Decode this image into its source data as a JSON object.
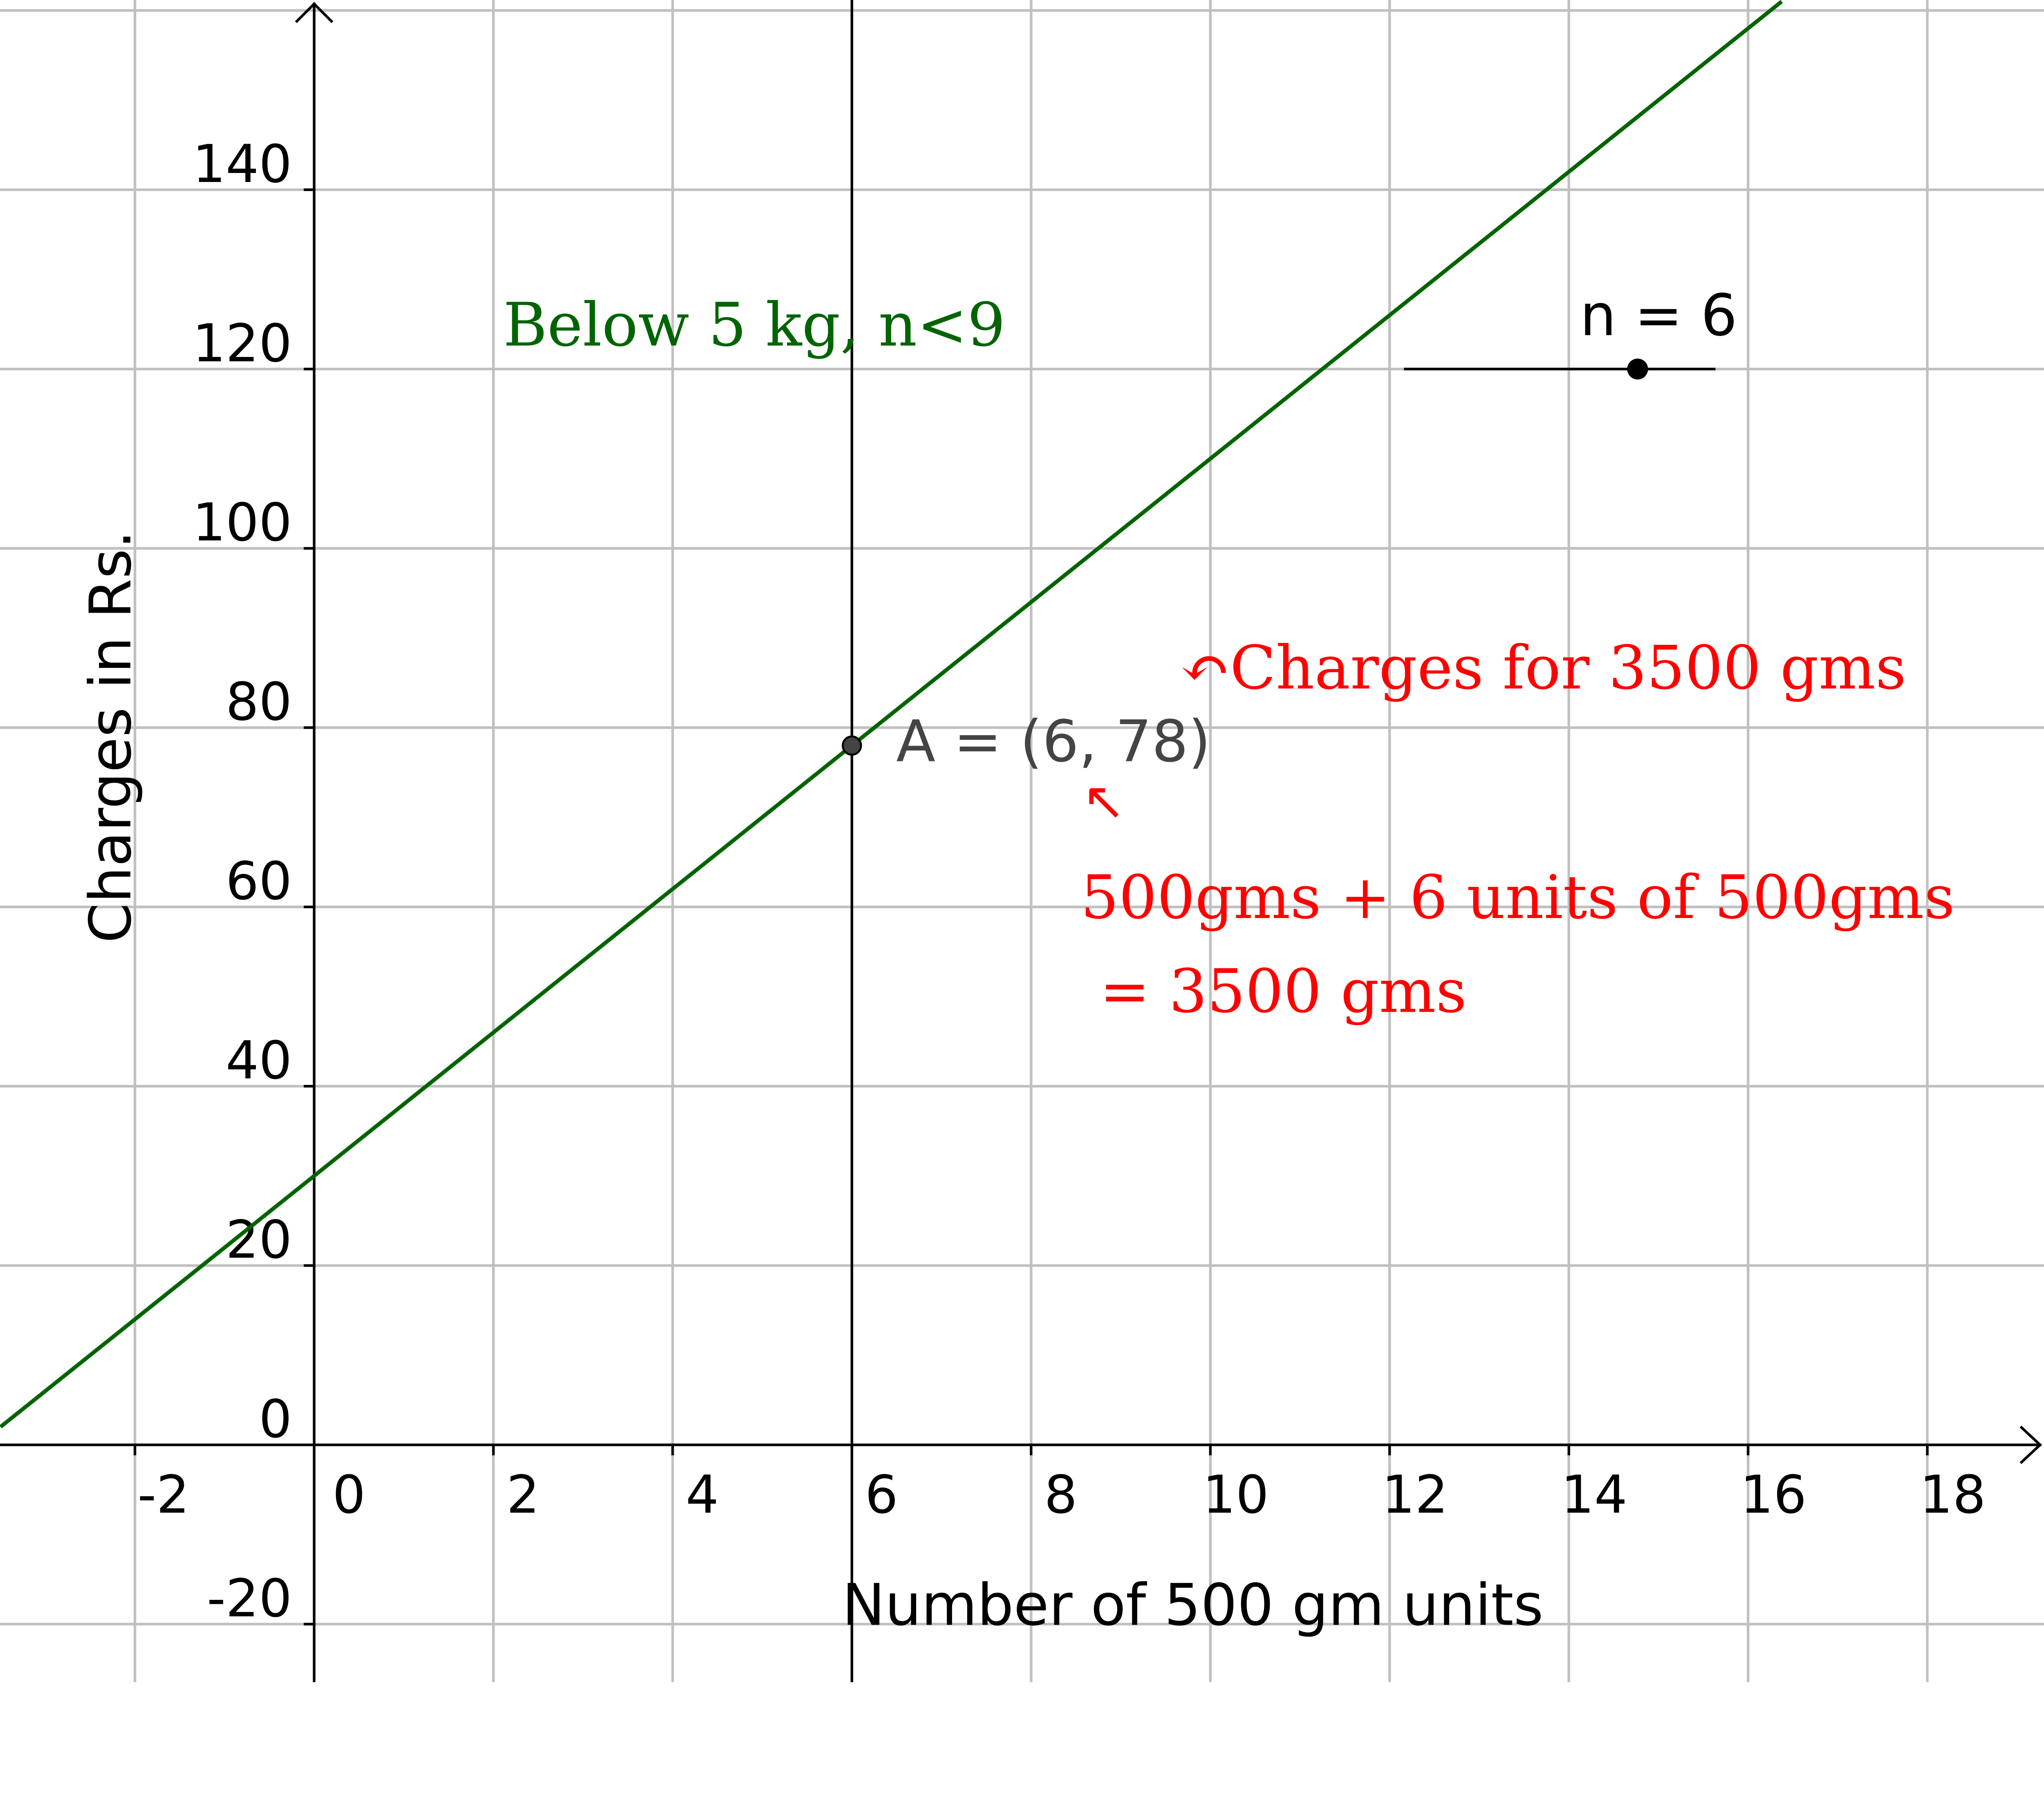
{
  "chart_data": {
    "type": "line",
    "xlabel": "Number of 500 gm units",
    "ylabel": "Charges in Rs.",
    "xlim": [
      -3.5,
      19.3
    ],
    "ylim": [
      -26,
      161
    ],
    "grid": true,
    "x_ticks": [
      -2,
      0,
      2,
      4,
      6,
      8,
      10,
      12,
      14,
      16,
      18
    ],
    "y_ticks": [
      -20,
      0,
      20,
      40,
      60,
      80,
      100,
      120,
      140
    ],
    "series": [
      {
        "equation": "y = 8x + 30",
        "slope": 8,
        "intercept": 30,
        "color": "#006400"
      }
    ],
    "vertical_line": {
      "x": 6
    },
    "point": {
      "label": "A = (6, 78)",
      "x": 6,
      "y": 78,
      "color": "#444444"
    },
    "slider": {
      "label": "n = 6",
      "min": 0,
      "max": 8,
      "value": 6
    },
    "annotations": {
      "series_label": "Below 5 kg, n<9",
      "charges_note": "↶Charges for 3500 gms",
      "arrow": "↖",
      "units_note_line1": "500gms + 6 units of 500gms",
      "units_note_line2": " = 3500 gms"
    },
    "colors": {
      "grid": "#c0c0c0",
      "axis": "#000000",
      "annotation": "#ff0000",
      "series": "#006400"
    }
  }
}
